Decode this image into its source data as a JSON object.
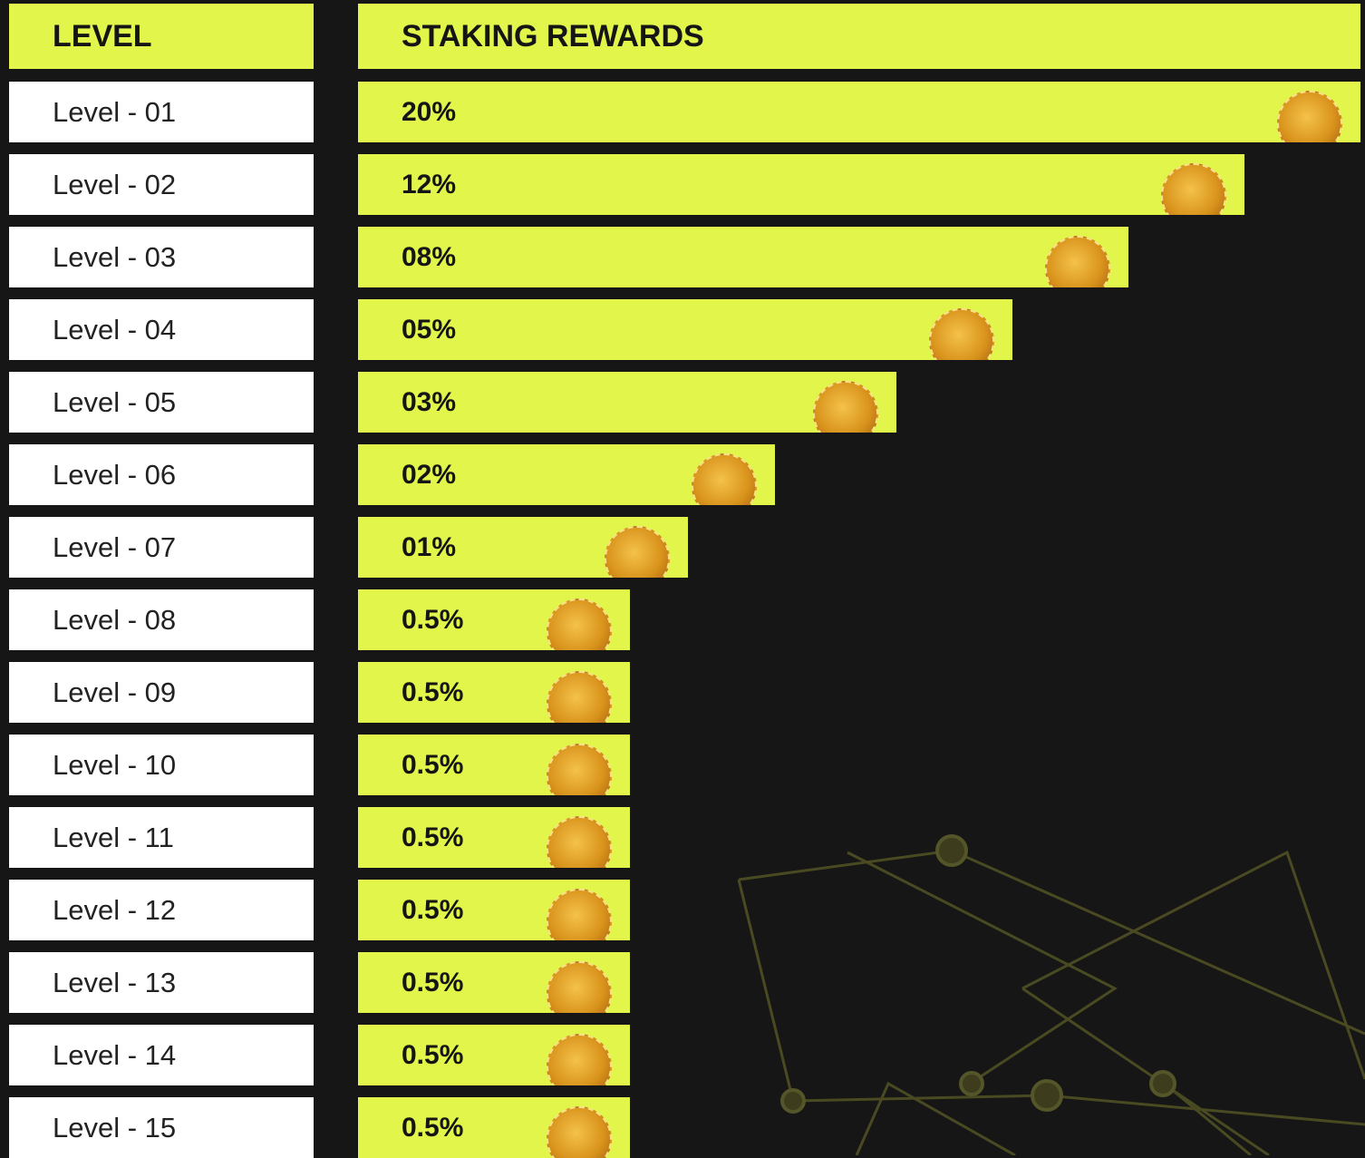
{
  "header": {
    "level": "LEVEL",
    "rewards": "STAKING REWARDS"
  },
  "rows": [
    {
      "level": "Level - 01",
      "reward": "20%"
    },
    {
      "level": "Level - 02",
      "reward": "12%"
    },
    {
      "level": "Level - 03",
      "reward": "08%"
    },
    {
      "level": "Level - 04",
      "reward": "05%"
    },
    {
      "level": "Level - 05",
      "reward": "03%"
    },
    {
      "level": "Level - 06",
      "reward": "02%"
    },
    {
      "level": "Level - 07",
      "reward": "01%"
    },
    {
      "level": "Level - 08",
      "reward": "0.5%"
    },
    {
      "level": "Level - 09",
      "reward": "0.5%"
    },
    {
      "level": "Level - 10",
      "reward": "0.5%"
    },
    {
      "level": "Level - 11",
      "reward": "0.5%"
    },
    {
      "level": "Level - 12",
      "reward": "0.5%"
    },
    {
      "level": "Level - 13",
      "reward": "0.5%"
    },
    {
      "level": "Level - 14",
      "reward": "0.5%"
    },
    {
      "level": "Level - 15",
      "reward": "0.5%"
    }
  ]
}
